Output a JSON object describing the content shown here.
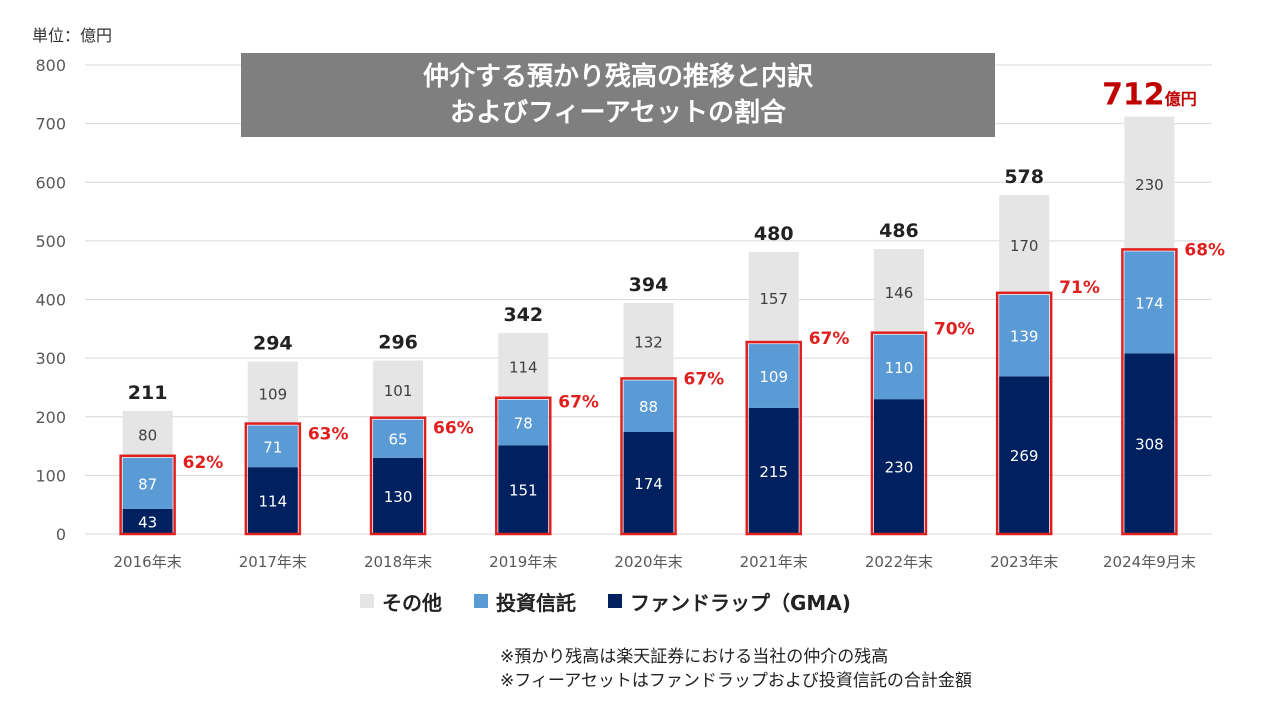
{
  "unit_label": "単位：億円",
  "title_lines": [
    "仲介する預かり残高の推移と内訳",
    "およびフィーアセットの割合"
  ],
  "colors": {
    "other": "#e5e5e5",
    "investment_trust": "#5b9bd5",
    "fund_wrap": "#002060",
    "highlight": "#e0201f",
    "total_highlight": "#c00000",
    "axis_text": "#595959"
  },
  "legend": [
    {
      "label": "その他",
      "color_key": "other"
    },
    {
      "label": "投資信託",
      "color_key": "investment_trust"
    },
    {
      "label": "ファンドラップ（GMA)",
      "color_key": "fund_wrap"
    }
  ],
  "notes": [
    "※預かり残高は楽天証券における当社の仲介の残高",
    "※フィーアセットはファンドラップおよび投資信託の合計金額"
  ],
  "chart_data": {
    "type": "bar",
    "stacked": true,
    "title": "仲介する預かり残高の推移と内訳 およびフィーアセットの割合",
    "ylabel": "単位：億円",
    "ylim": [
      0,
      800
    ],
    "yticks": [
      0,
      100,
      200,
      300,
      400,
      500,
      600,
      700,
      800
    ],
    "categories": [
      "2016年末",
      "2017年末",
      "2018年末",
      "2019年末",
      "2020年末",
      "2021年末",
      "2022年末",
      "2023年末",
      "2024年9月末"
    ],
    "series": [
      {
        "name": "ファンドラップ（GMA)",
        "color_key": "fund_wrap",
        "values": [
          43,
          114,
          130,
          151,
          174,
          215,
          230,
          269,
          308
        ]
      },
      {
        "name": "投資信託",
        "color_key": "investment_trust",
        "values": [
          87,
          71,
          65,
          78,
          88,
          109,
          110,
          139,
          174
        ]
      },
      {
        "name": "その他",
        "color_key": "other",
        "values": [
          80,
          109,
          101,
          114,
          132,
          157,
          146,
          170,
          230
        ]
      }
    ],
    "totals": [
      "211",
      "294",
      "296",
      "342",
      "394",
      "480",
      "486",
      "578",
      "712"
    ],
    "last_total_unit": "億円",
    "fee_asset_ratio": [
      "62%",
      "63%",
      "66%",
      "67%",
      "67%",
      "67%",
      "70%",
      "71%",
      "68%"
    ]
  }
}
